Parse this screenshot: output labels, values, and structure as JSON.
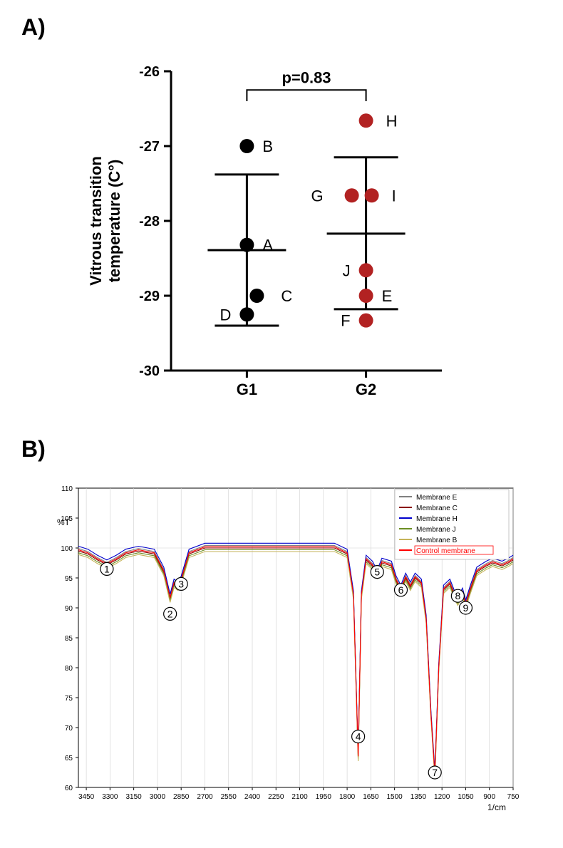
{
  "panelA": {
    "label": "A)",
    "ylabel_line1": "Vitrous transition",
    "ylabel_line2": "temperature (C°)",
    "ylabel_fontsize": 22,
    "ylabel_fontweight": "bold",
    "pvalue_text": "p=0.83",
    "pvalue_fontsize": 22,
    "pvalue_fontweight": "bold",
    "xticks": [
      "G1",
      "G2"
    ],
    "xtick_fontsize": 22,
    "xtick_fontweight": "bold",
    "ylim": [
      -30,
      -26
    ],
    "yticks": [
      -30,
      -29,
      -28,
      -27,
      -26
    ],
    "ytick_fontsize": 20,
    "ytick_fontweight": "bold",
    "axis_linewidth": 3,
    "tick_length": 10,
    "groups": [
      {
        "name": "G1",
        "x": 1,
        "color": "#000000",
        "mean": -28.39,
        "err_low": -29.4,
        "err_high": -27.38,
        "points": [
          {
            "label": "B",
            "y": -27.0,
            "dx": 0,
            "labeldx": 22
          },
          {
            "label": "A",
            "y": -28.32,
            "dx": 0,
            "labeldx": 22
          },
          {
            "label": "C",
            "y": -29.0,
            "dx": 14,
            "labeldx": 34
          },
          {
            "label": "D",
            "y": -29.25,
            "dx": 0,
            "labeldx": -22
          }
        ]
      },
      {
        "name": "G2",
        "x": 2,
        "color": "#b22222",
        "mean": -28.17,
        "err_low": -29.18,
        "err_high": -27.15,
        "points": [
          {
            "label": "H",
            "y": -26.66,
            "dx": 0,
            "labeldx": 28
          },
          {
            "label": "G",
            "y": -27.66,
            "dx": -20,
            "labeldx": -40
          },
          {
            "label": "I",
            "y": -27.66,
            "dx": 8,
            "labeldx": 28
          },
          {
            "label": "J",
            "y": -28.66,
            "dx": 0,
            "labeldx": -22
          },
          {
            "label": "E",
            "y": -29.0,
            "dx": 0,
            "labeldx": 22
          },
          {
            "label": "F",
            "y": -29.33,
            "dx": 0,
            "labeldx": -22
          }
        ]
      }
    ],
    "point_radius": 10,
    "point_label_fontsize": 22,
    "errbar_cap_halfwidth": 45,
    "errbar_linewidth": 3,
    "comparison_bar_y": -26.25,
    "comparison_bar_tickdrop": 0.15
  },
  "panelB": {
    "label": "B)",
    "ylabel": "%T",
    "xlabel": "1/cm",
    "label_fontsize": 12,
    "xlim": [
      3500,
      750
    ],
    "ylim": [
      60,
      110
    ],
    "yticks": [
      60,
      65,
      70,
      75,
      80,
      85,
      90,
      95,
      100,
      105,
      110
    ],
    "xticks": [
      3450,
      3300,
      3150,
      3000,
      2850,
      2700,
      2550,
      2400,
      2250,
      2100,
      1950,
      1800,
      1650,
      1500,
      1350,
      1200,
      1050,
      900,
      750
    ],
    "tick_fontsize": 10,
    "grid_xstep": 150,
    "grid_ystep": 50,
    "grid_color": "#cfcfcf",
    "background_color": "#ffffff",
    "axis_color": "#000000",
    "legend": [
      {
        "label": "Membrane E",
        "color": "#808080"
      },
      {
        "label": "Membrane C",
        "color": "#8b0000"
      },
      {
        "label": "Membrane H",
        "color": "#0000cc"
      },
      {
        "label": "Membrane J",
        "color": "#6b8e23"
      },
      {
        "label": "Membrane B",
        "color": "#c5b358"
      },
      {
        "label": "Control membrane",
        "color": "#ff0000",
        "highlight": true
      }
    ],
    "markers": [
      {
        "n": "1",
        "x": 3320,
        "y": 96.5
      },
      {
        "n": "2",
        "x": 2920,
        "y": 89
      },
      {
        "n": "3",
        "x": 2850,
        "y": 94
      },
      {
        "n": "4",
        "x": 1730,
        "y": 68.5
      },
      {
        "n": "5",
        "x": 1610,
        "y": 96
      },
      {
        "n": "6",
        "x": 1460,
        "y": 93
      },
      {
        "n": "7",
        "x": 1245,
        "y": 62.5
      },
      {
        "n": "8",
        "x": 1100,
        "y": 92
      },
      {
        "n": "9",
        "x": 1050,
        "y": 90
      }
    ],
    "marker_fontsize": 14,
    "spectrum_common": [
      [
        3500,
        99.5
      ],
      [
        3440,
        99
      ],
      [
        3380,
        98
      ],
      [
        3320,
        97.2
      ],
      [
        3260,
        98
      ],
      [
        3200,
        99
      ],
      [
        3120,
        99.5
      ],
      [
        3020,
        99
      ],
      [
        2960,
        96
      ],
      [
        2920,
        91.5
      ],
      [
        2895,
        94
      ],
      [
        2870,
        93.5
      ],
      [
        2850,
        94.5
      ],
      [
        2800,
        99
      ],
      [
        2700,
        100
      ],
      [
        2600,
        100
      ],
      [
        2400,
        100
      ],
      [
        2200,
        100
      ],
      [
        2050,
        100
      ],
      [
        1950,
        100
      ],
      [
        1880,
        100
      ],
      [
        1800,
        99
      ],
      [
        1760,
        92
      ],
      [
        1730,
        65
      ],
      [
        1710,
        92
      ],
      [
        1680,
        98
      ],
      [
        1640,
        97
      ],
      [
        1610,
        95.5
      ],
      [
        1580,
        97.5
      ],
      [
        1520,
        97
      ],
      [
        1490,
        94.5
      ],
      [
        1460,
        93
      ],
      [
        1430,
        95
      ],
      [
        1400,
        93.5
      ],
      [
        1370,
        95
      ],
      [
        1330,
        94
      ],
      [
        1300,
        88
      ],
      [
        1270,
        72
      ],
      [
        1245,
        62
      ],
      [
        1220,
        80
      ],
      [
        1190,
        93
      ],
      [
        1150,
        94
      ],
      [
        1120,
        92
      ],
      [
        1100,
        91
      ],
      [
        1070,
        92.5
      ],
      [
        1050,
        90.5
      ],
      [
        1020,
        93
      ],
      [
        980,
        96
      ],
      [
        920,
        97
      ],
      [
        880,
        97.5
      ],
      [
        820,
        97
      ],
      [
        780,
        97.5
      ],
      [
        750,
        98
      ]
    ],
    "series_offsets": [
      {
        "name": "E",
        "color": "#808080",
        "dy": 0.4
      },
      {
        "name": "C",
        "color": "#8b0000",
        "dy": 0.0
      },
      {
        "name": "H",
        "color": "#0000cc",
        "dy": 0.8
      },
      {
        "name": "J",
        "color": "#6b8e23",
        "dy": -0.3
      },
      {
        "name": "B",
        "color": "#c5b358",
        "dy": -0.6
      },
      {
        "name": "Control",
        "color": "#ff0000",
        "dy": 0.2
      }
    ],
    "line_width": 1.1
  }
}
